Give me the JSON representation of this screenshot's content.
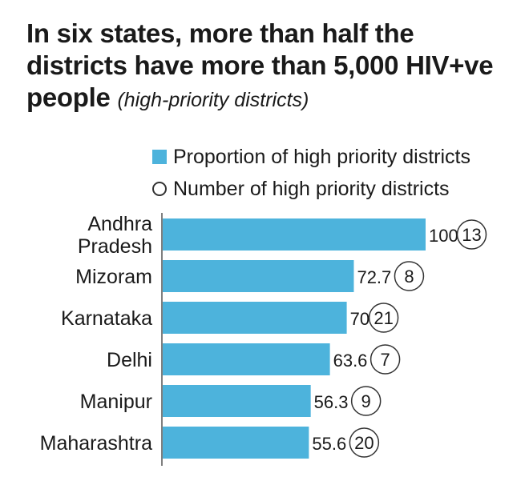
{
  "header": {
    "title": "In six states, more than half the districts have more than 5,000 HIV+ve people",
    "subtitle": "(high-priority districts)"
  },
  "legend": {
    "proportion_label": "Proportion of high priority districts",
    "number_label": "Number of high priority districts"
  },
  "colors": {
    "bar": "#4db3dc",
    "axis": "#555555",
    "text": "#1a1a1a"
  },
  "chart_data": {
    "type": "bar",
    "orientation": "horizontal",
    "categories": [
      [
        "Andhra",
        "Pradesh"
      ],
      [
        "Mizoram"
      ],
      [
        "Karnataka"
      ],
      [
        "Delhi"
      ],
      [
        "Manipur"
      ],
      [
        "Maharashtra"
      ]
    ],
    "series": [
      {
        "name": "Proportion of high priority districts",
        "values": [
          100,
          72.7,
          70,
          63.6,
          56.3,
          55.6
        ]
      },
      {
        "name": "Number of high priority districts",
        "values": [
          13,
          8,
          21,
          7,
          9,
          20
        ]
      }
    ],
    "xlim": [
      0,
      100
    ],
    "grid": false,
    "legend_position": "top"
  }
}
